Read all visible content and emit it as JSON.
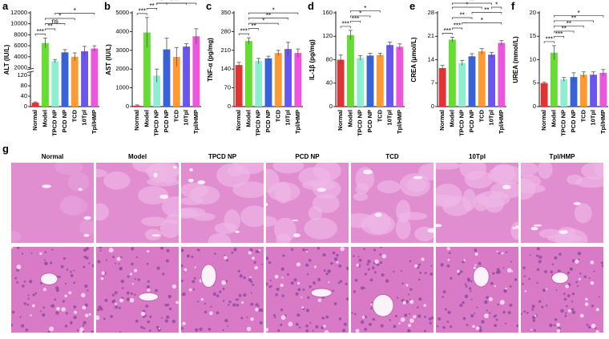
{
  "chart_data": [
    {
      "type": "bar",
      "panel": "a",
      "ylabel": "ALT (IU/L)",
      "categories": [
        "Normal",
        "Model",
        "TPCD NP",
        "PCD NP",
        "TCD",
        "10Tpl",
        "Tpl/HMP"
      ],
      "colors": [
        "#e03434",
        "#66dd33",
        "#8eeed2",
        "#3a62d8",
        "#ff9a33",
        "#6a55ee",
        "#ee55dd"
      ],
      "values": [
        15,
        6500,
        3200,
        4800,
        4000,
        5000,
        5500
      ],
      "errors": [
        3,
        900,
        300,
        500,
        700,
        900,
        500
      ],
      "ylim": [
        0,
        12000
      ],
      "ybreak": [
        130,
        1800
      ],
      "yticks": [
        0,
        40,
        80,
        120,
        2000,
        4000,
        6000,
        8000,
        10000,
        12000
      ],
      "significance": [
        {
          "from": 0,
          "to": 1,
          "label": "***"
        },
        {
          "from": 1,
          "to": 2,
          "label": "**"
        },
        {
          "from": 1,
          "to": 3,
          "label": "ns"
        },
        {
          "from": 1,
          "to": 4,
          "label": "*"
        },
        {
          "from": 2,
          "to": 6,
          "label": "*"
        }
      ]
    },
    {
      "type": "bar",
      "panel": "b",
      "ylabel": "AST (IU/L)",
      "categories": [
        "Normal",
        "Model",
        "TPCD NP",
        "PCD NP",
        "TCD",
        "10Tpl",
        "Tpl/HMP"
      ],
      "colors": [
        "#e03434",
        "#66dd33",
        "#8eeed2",
        "#3a62d8",
        "#ff9a33",
        "#6a55ee",
        "#ee55dd"
      ],
      "values": [
        50,
        3950,
        1650,
        3050,
        2650,
        3200,
        3750
      ],
      "errors": [
        40,
        800,
        350,
        600,
        500,
        150,
        400
      ],
      "ylim": [
        0,
        5000
      ],
      "yticks": [
        0,
        1000,
        2000,
        3000,
        4000,
        5000
      ],
      "significance": [
        {
          "from": 0,
          "to": 1,
          "label": "***"
        },
        {
          "from": 1,
          "to": 2,
          "label": "**"
        },
        {
          "from": 2,
          "to": 3,
          "label": "*"
        },
        {
          "from": 2,
          "to": 5,
          "label": "*"
        },
        {
          "from": 2,
          "to": 6,
          "label": "**"
        }
      ]
    },
    {
      "type": "bar",
      "panel": "c",
      "ylabel": "TNF-α (pg/mg)",
      "categories": [
        "Normal",
        "Model",
        "TPCD NP",
        "PCD NP",
        "TCD",
        "10Tpl",
        "Tpl/HMP"
      ],
      "colors": [
        "#e03434",
        "#66dd33",
        "#8eeed2",
        "#3a62d8",
        "#ff9a33",
        "#6a55ee",
        "#ee55dd"
      ],
      "values": [
        155,
        245,
        170,
        180,
        200,
        215,
        200
      ],
      "errors": [
        10,
        12,
        10,
        8,
        10,
        25,
        15
      ],
      "ylim": [
        0,
        350
      ],
      "yticks": [
        0,
        70,
        140,
        210,
        280,
        350
      ],
      "significance": [
        {
          "from": 0,
          "to": 1,
          "label": "***"
        },
        {
          "from": 1,
          "to": 2,
          "label": "**"
        },
        {
          "from": 1,
          "to": 4,
          "label": "*"
        },
        {
          "from": 1,
          "to": 5,
          "label": "**"
        },
        {
          "from": 1,
          "to": 6,
          "label": "*"
        }
      ]
    },
    {
      "type": "bar",
      "panel": "d",
      "ylabel": "IL-1β (pg/mg)",
      "categories": [
        "Normal",
        "Model",
        "TPCD NP",
        "PCD NP",
        "TCD",
        "10Tpl",
        "Tpl/HMP"
      ],
      "colors": [
        "#e03434",
        "#66dd33",
        "#8eeed2",
        "#3a62d8",
        "#ff9a33",
        "#6a55ee",
        "#ee55dd"
      ],
      "values": [
        80,
        122,
        83,
        87,
        88,
        105,
        102
      ],
      "errors": [
        8,
        8,
        4,
        4,
        3,
        5,
        5
      ],
      "ylim": [
        0,
        160
      ],
      "yticks": [
        0,
        40,
        80,
        120,
        160
      ],
      "significance": [
        {
          "from": 0,
          "to": 1,
          "label": "***"
        },
        {
          "from": 1,
          "to": 2,
          "label": "***"
        },
        {
          "from": 1,
          "to": 3,
          "label": "*"
        },
        {
          "from": 1,
          "to": 4,
          "label": "*"
        }
      ]
    },
    {
      "type": "bar",
      "panel": "e",
      "ylabel": "CREA (μmol/L)",
      "categories": [
        "Normal",
        "Model",
        "TPCD NP",
        "PCD NP",
        "TCD",
        "10Tpl",
        "Tpl/HMP"
      ],
      "colors": [
        "#e03434",
        "#66dd33",
        "#8eeed2",
        "#3a62d8",
        "#ff9a33",
        "#6a55ee",
        "#ee55dd"
      ],
      "values": [
        11.5,
        20,
        13,
        15,
        16.5,
        15.5,
        19
      ],
      "errors": [
        0.8,
        0.7,
        0.8,
        0.8,
        0.8,
        0.7,
        0.7
      ],
      "ylim": [
        0,
        28
      ],
      "yticks": [
        0,
        7,
        14,
        21,
        28
      ],
      "significance": [
        {
          "from": 0,
          "to": 1,
          "label": "***"
        },
        {
          "from": 1,
          "to": 2,
          "label": "***"
        },
        {
          "from": 2,
          "to": 6,
          "label": "*"
        },
        {
          "from": 1,
          "to": 3,
          "label": "**"
        },
        {
          "from": 3,
          "to": 6,
          "label": "**"
        },
        {
          "from": 1,
          "to": 4,
          "label": "*"
        },
        {
          "from": 5,
          "to": 6,
          "label": "*"
        },
        {
          "from": 1,
          "to": 5,
          "label": "**"
        }
      ]
    },
    {
      "type": "bar",
      "panel": "f",
      "ylabel": "UREA (mmol/L)",
      "categories": [
        "Normal",
        "Model",
        "TPCD NP",
        "PCD NP",
        "TCD",
        "10Tpl",
        "Tpl/HMP"
      ],
      "colors": [
        "#e03434",
        "#66dd33",
        "#8eeed2",
        "#3a62d8",
        "#ff9a33",
        "#6a55ee",
        "#ee55dd"
      ],
      "values": [
        5,
        11.5,
        5.8,
        6.3,
        6.8,
        6.8,
        7.2
      ],
      "errors": [
        0.2,
        1.5,
        0.4,
        0.9,
        0.6,
        0.6,
        0.7
      ],
      "ylim": [
        0,
        20
      ],
      "yticks": [
        0,
        5,
        10,
        15,
        20
      ],
      "significance": [
        {
          "from": 0,
          "to": 1,
          "label": "***"
        },
        {
          "from": 1,
          "to": 2,
          "label": "***"
        },
        {
          "from": 1,
          "to": 3,
          "label": "**"
        },
        {
          "from": 1,
          "to": 4,
          "label": "**"
        },
        {
          "from": 1,
          "to": 5,
          "label": "**"
        },
        {
          "from": 1,
          "to": 6,
          "label": "*"
        }
      ]
    }
  ],
  "histology": {
    "panel": "g",
    "columns": [
      "Normal",
      "Model",
      "TPCD NP",
      "PCD NP",
      "TCD",
      "10Tpl",
      "Tpl/HMP"
    ]
  }
}
